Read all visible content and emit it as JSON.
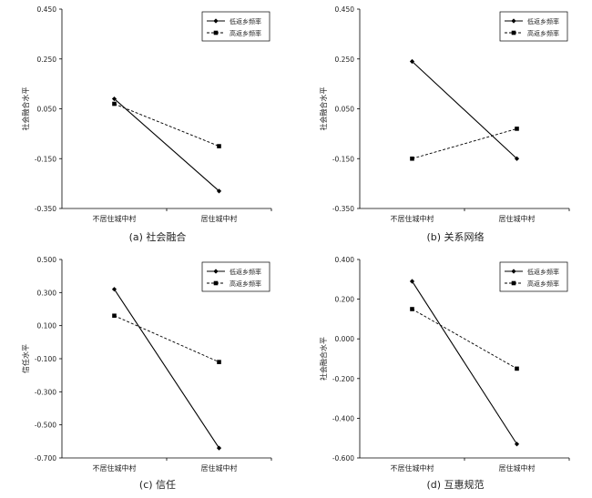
{
  "chart_data": [
    {
      "type": "line",
      "caption": "(a) 社会融合",
      "ylabel": "社会融合水平",
      "categories": [
        "不居住城中村",
        "居住城中村"
      ],
      "yticks": [
        "0.450",
        "0.250",
        "0.050",
        "-0.150",
        "-0.350"
      ],
      "ylim": [
        -0.35,
        0.45
      ],
      "legend_position": "top-right",
      "series": [
        {
          "name": "低返乡频率",
          "values": [
            0.09,
            -0.28
          ]
        },
        {
          "name": "高返乡频率",
          "values": [
            0.07,
            -0.1
          ]
        }
      ]
    },
    {
      "type": "line",
      "caption": "(b) 关系网络",
      "ylabel": "社会融合水平",
      "categories": [
        "不居住城中村",
        "居住城中村"
      ],
      "yticks": [
        "0.450",
        "0.250",
        "0.050",
        "-0.150",
        "-0.350"
      ],
      "ylim": [
        -0.35,
        0.45
      ],
      "legend_position": "top-right",
      "series": [
        {
          "name": "低返乡频率",
          "values": [
            0.24,
            -0.15
          ]
        },
        {
          "name": "高返乡频率",
          "values": [
            -0.15,
            -0.03
          ]
        }
      ]
    },
    {
      "type": "line",
      "caption": "(c) 信任",
      "ylabel": "信任水平",
      "categories": [
        "不居住城中村",
        "居住城中村"
      ],
      "yticks": [
        "0.500",
        "0.300",
        "0.100",
        "-0.100",
        "-0.300",
        "-0.500",
        "-0.700"
      ],
      "ylim": [
        -0.7,
        0.5
      ],
      "legend_position": "top-right",
      "series": [
        {
          "name": "低返乡频率",
          "values": [
            0.32,
            -0.64
          ]
        },
        {
          "name": "高返乡频率",
          "values": [
            0.16,
            -0.12
          ]
        }
      ]
    },
    {
      "type": "line",
      "caption": "(d) 互惠规范",
      "ylabel": "社会融合水平",
      "categories": [
        "不居住城中村",
        "居住城中村"
      ],
      "yticks": [
        "0.400",
        "0.200",
        "0.000",
        "-0.200",
        "-0.400",
        "-0.600"
      ],
      "ylim": [
        -0.6,
        0.4
      ],
      "legend_position": "top-right",
      "series": [
        {
          "name": "低返乡频率",
          "values": [
            0.29,
            -0.53
          ]
        },
        {
          "name": "高返乡频率",
          "values": [
            0.15,
            -0.15
          ]
        }
      ]
    }
  ]
}
